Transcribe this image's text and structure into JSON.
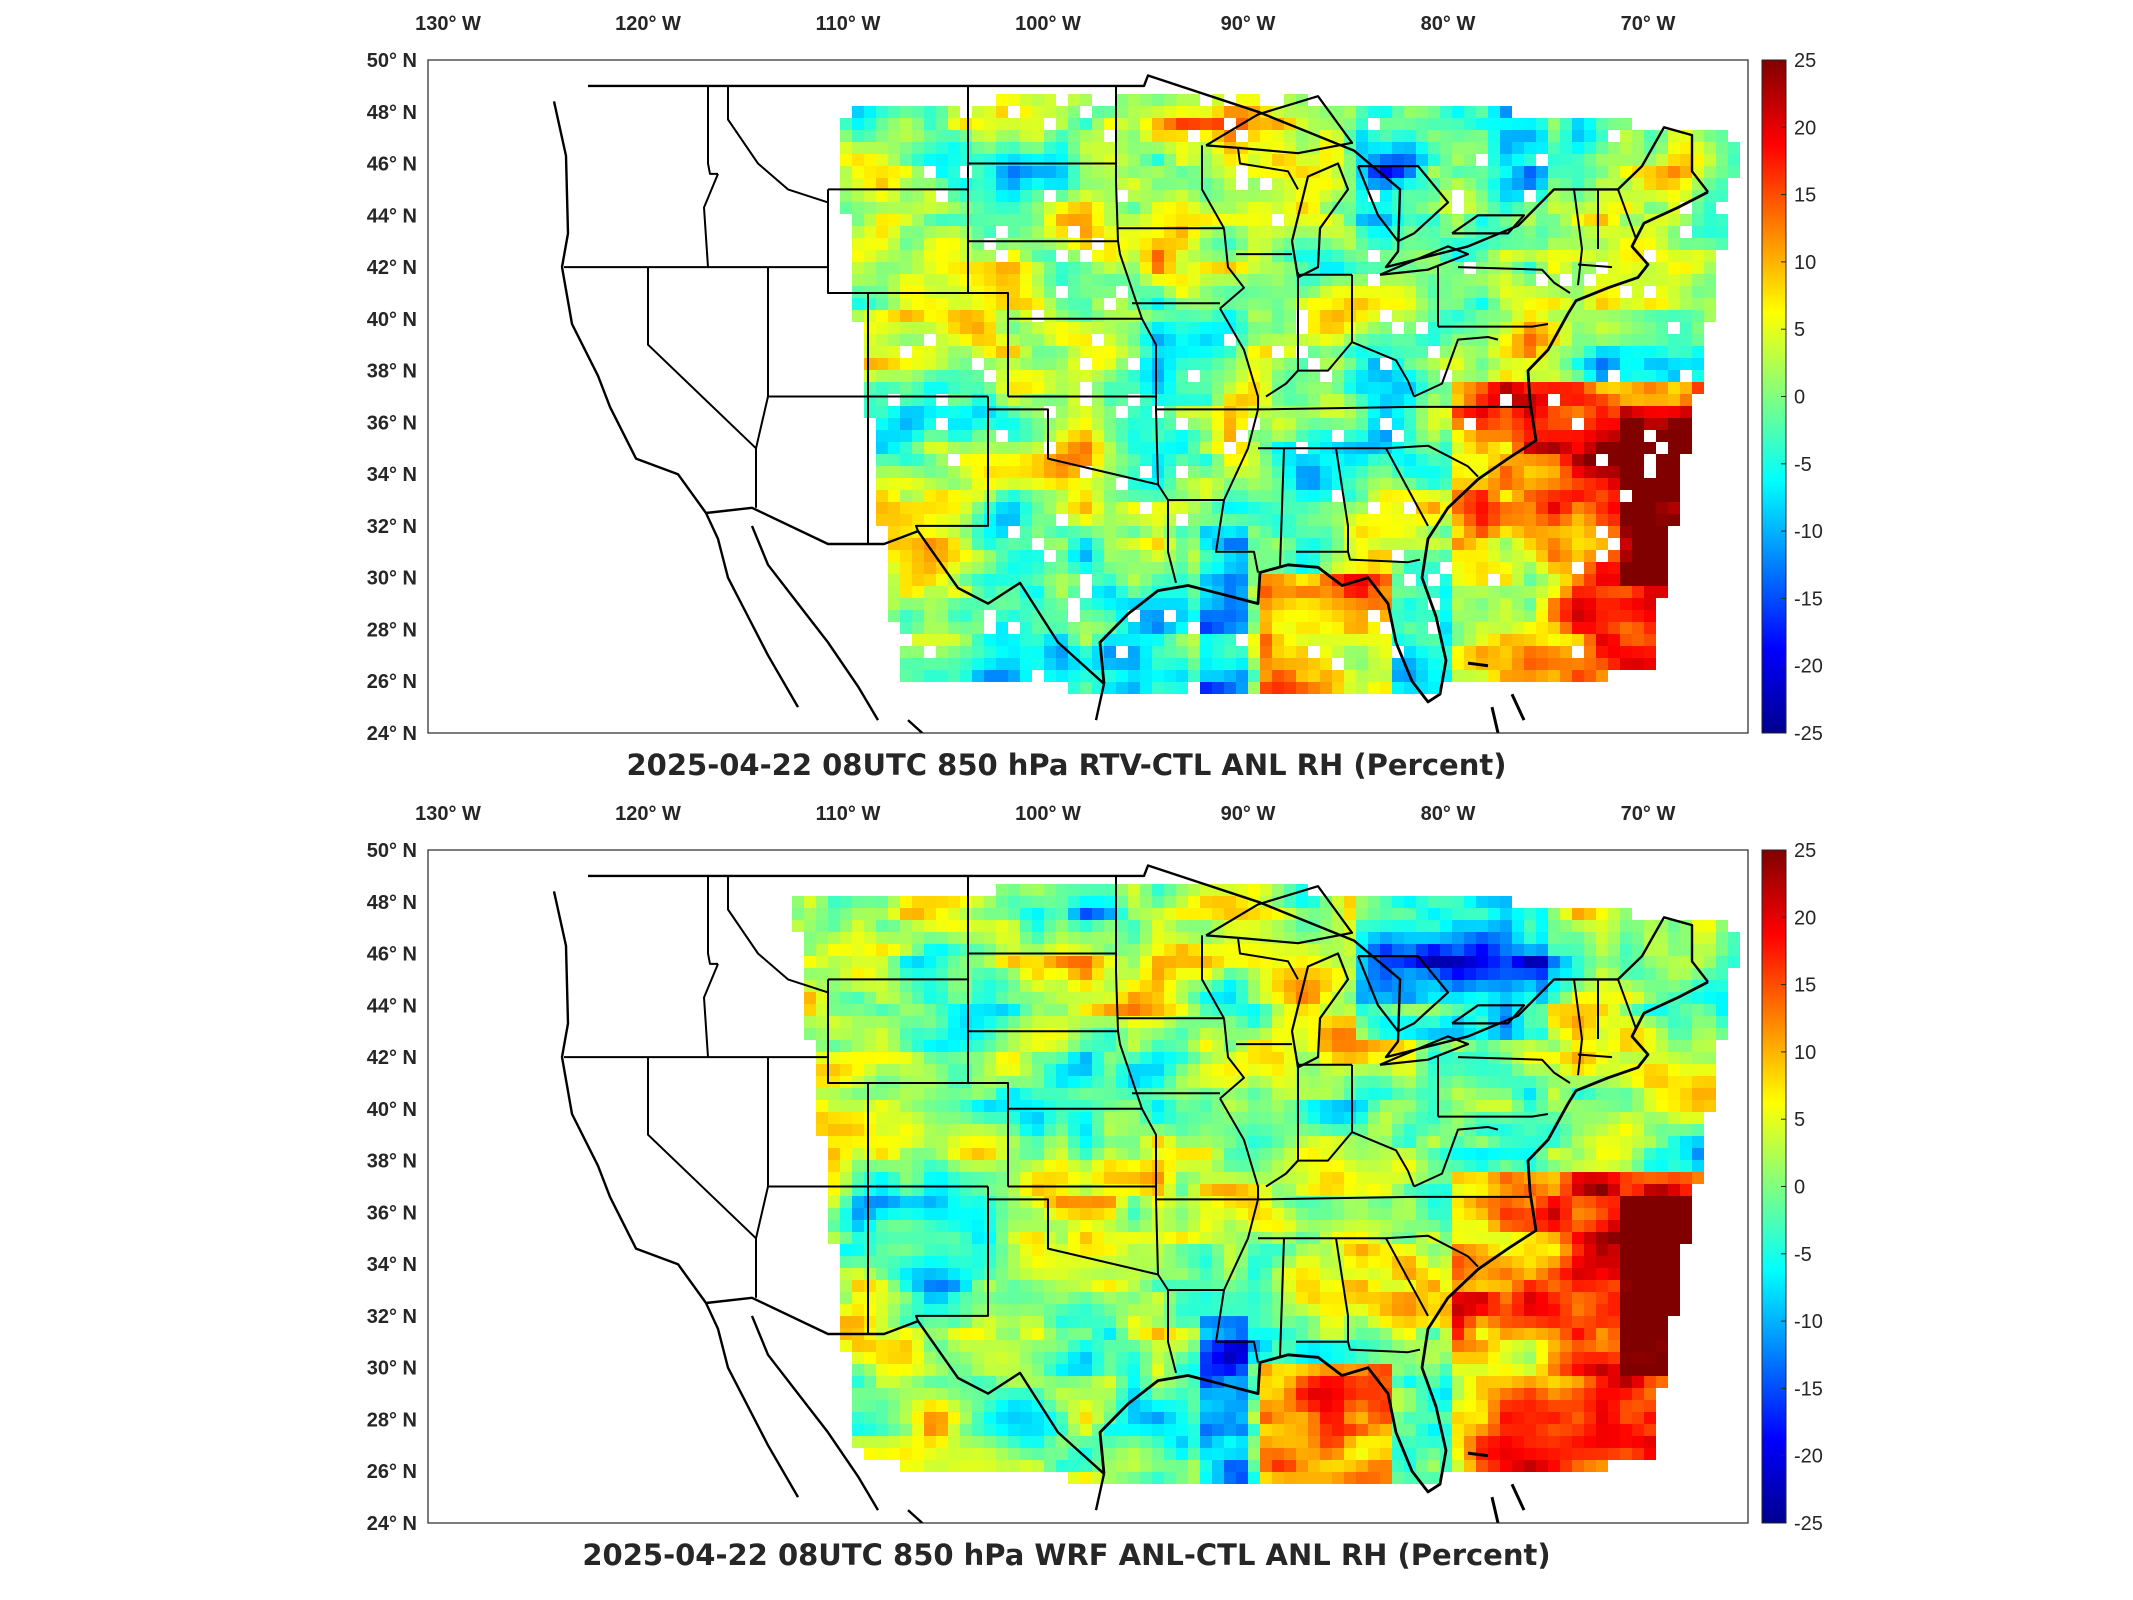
{
  "panels": [
    {
      "id": "rtv",
      "title": "2025-04-22 08UTC 850 hPa RTV-CTL ANL RH (Percent)"
    },
    {
      "id": "wrf",
      "title": "2025-04-22 08UTC 850 hPa WRF ANL-CTL ANL RH (Percent)"
    }
  ],
  "lon_labels": [
    "130",
    "120",
    "110",
    "100",
    "90",
    "80",
    "70"
  ],
  "lon_suffix": "W",
  "lat_labels": [
    "50",
    "48",
    "46",
    "44",
    "42",
    "40",
    "38",
    "36",
    "34",
    "32",
    "30",
    "28",
    "26",
    "24"
  ],
  "lat_suffix": "N",
  "colorbar": {
    "ticks": [
      "25",
      "20",
      "15",
      "10",
      "5",
      "0",
      "-5",
      "-10",
      "-15",
      "-20",
      "-25"
    ],
    "min": -25,
    "max": 25,
    "colormap": [
      "#00008f",
      "#0000ff",
      "#0080ff",
      "#00ffff",
      "#80ff80",
      "#ffff00",
      "#ff8000",
      "#ff0000",
      "#800000"
    ]
  },
  "map": {
    "lon_range": [
      -131,
      -65
    ],
    "lat_range": [
      24,
      50
    ],
    "coastline_color": "#000000"
  }
}
